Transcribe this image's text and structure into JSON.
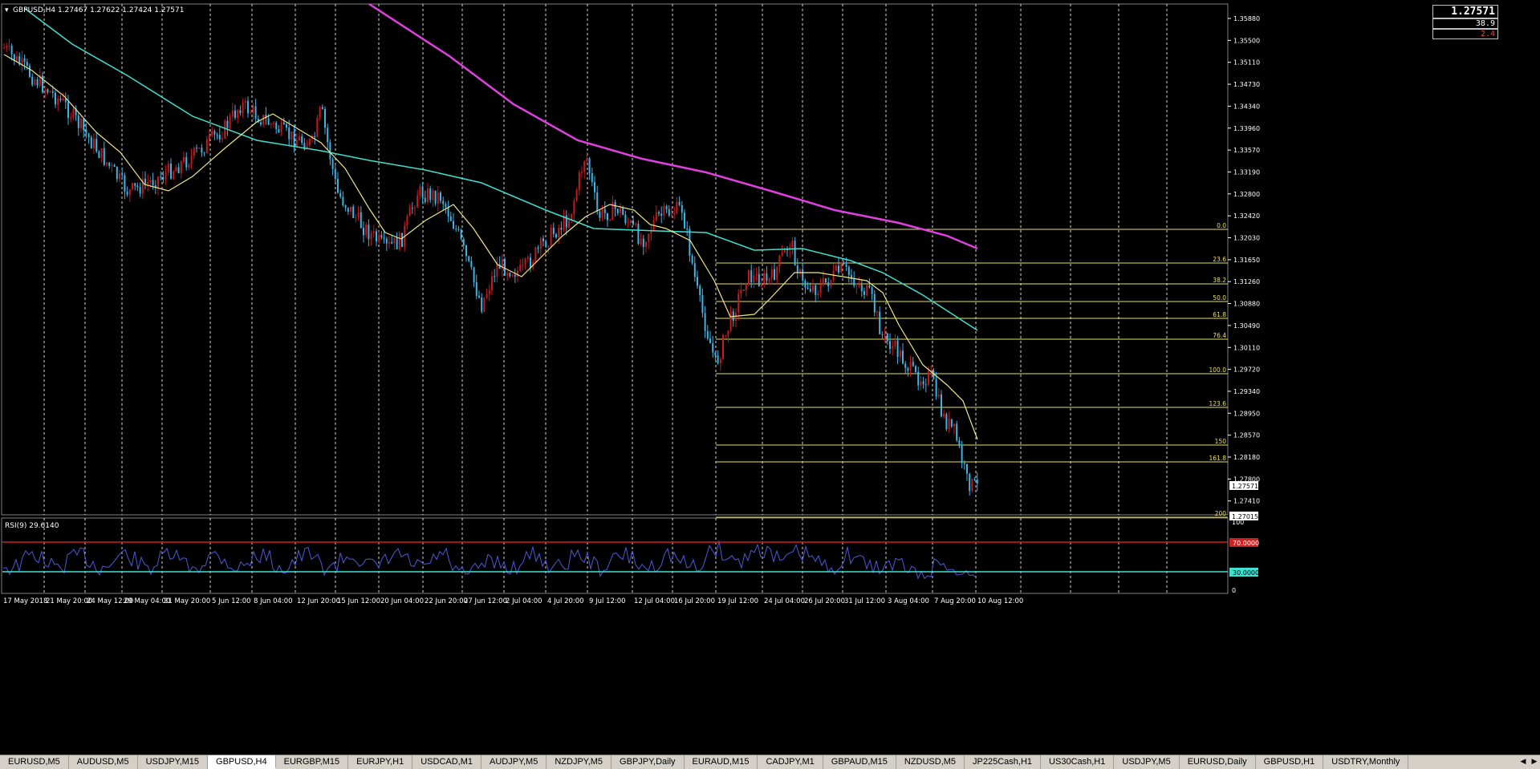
{
  "chart": {
    "header": "GBPUSD,H4  1.27467 1.27622 1.27424 1.27571",
    "price_box": {
      "price": "1.27571",
      "value1": "38.9",
      "value2": "2.4"
    },
    "current_price_label": "1.27571",
    "bottom_price_label": "1.27015",
    "price_axis": [
      "1.35880",
      "1.35500",
      "1.35110",
      "1.34730",
      "1.34340",
      "1.33960",
      "1.33570",
      "1.33190",
      "1.32800",
      "1.32420",
      "1.32030",
      "1.31650",
      "1.31260",
      "1.30880",
      "1.30490",
      "1.30110",
      "1.29720",
      "1.29340",
      "1.28950",
      "1.28570",
      "1.28180",
      "1.27800",
      "1.27410"
    ],
    "time_axis": [
      "17 May 2018",
      "21 May 20:00",
      "24 May 12:00",
      "29 May 04:00",
      "31 May 20:00",
      "5 Jun 12:00",
      "8 Jun 04:00",
      "12 Jun 20:00",
      "15 Jun 12:00",
      "20 Jun 04:00",
      "22 Jun 20:00",
      "27 Jun 12:00",
      "2 Jul 04:00",
      "4 Jul 20:00",
      "9 Jul 12:00",
      "12 Jul 04:00",
      "16 Jul 20:00",
      "19 Jul 12:00",
      "24 Jul 04:00",
      "26 Jul 20:00",
      "31 Jul 12:00",
      "3 Aug 04:00",
      "7 Aug 20:00",
      "10 Aug 12:00"
    ],
    "fib_levels": [
      "0.0",
      "23.6",
      "38.2",
      "50.0",
      "61.8",
      "76.4",
      "100.0",
      "123.6",
      "150",
      "161.8",
      "200"
    ],
    "colors": {
      "bull": "#c8191e",
      "bear": "#3cb4e6",
      "ma_fast": "#f0e68c",
      "ma_mid": "#40e0d0",
      "ma_slow": "#e040e0",
      "fib": "#e8e060",
      "grid": "#ffffff"
    }
  },
  "rsi": {
    "label": "RSI(9) 29.6140",
    "level_high": "70.0000",
    "level_low": "30.0000",
    "axis_top": "100",
    "axis_bottom": "0"
  },
  "tabs": [
    {
      "label": "EURUSD,M5"
    },
    {
      "label": "AUDUSD,M5"
    },
    {
      "label": "USDJPY,M15"
    },
    {
      "label": "GBPUSD,H4",
      "active": true
    },
    {
      "label": "EURGBP,M15"
    },
    {
      "label": "EURJPY,H1"
    },
    {
      "label": "USDCAD,M1"
    },
    {
      "label": "AUDJPY,M5"
    },
    {
      "label": "NZDJPY,M5"
    },
    {
      "label": "GBPJPY,Daily"
    },
    {
      "label": "EURAUD,M15"
    },
    {
      "label": "CADJPY,M1"
    },
    {
      "label": "GBPAUD,M15"
    },
    {
      "label": "NZDUSD,M5"
    },
    {
      "label": "JP225Cash,H1"
    },
    {
      "label": "US30Cash,H1"
    },
    {
      "label": "USDJPY,M5"
    },
    {
      "label": "EURUSD,Daily"
    },
    {
      "label": "GBPUSD,H1"
    },
    {
      "label": "USDTRY,Monthly"
    }
  ]
}
